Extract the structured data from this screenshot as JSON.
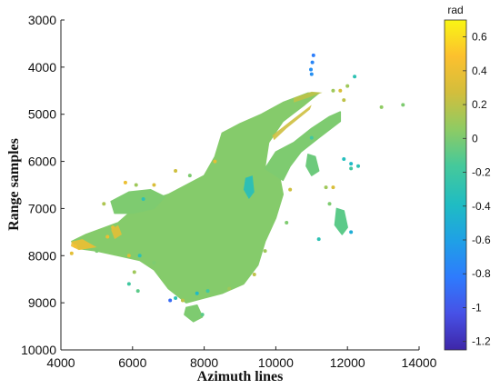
{
  "chart_data": {
    "type": "scatter",
    "title": "",
    "xlabel": "Azimuth lines",
    "ylabel": "Range samples",
    "xlim": [
      4000,
      14000
    ],
    "ylim": [
      3000,
      10000
    ],
    "y_inverted": true,
    "x_ticks": [
      4000,
      6000,
      8000,
      10000,
      12000,
      14000
    ],
    "y_ticks": [
      3000,
      4000,
      5000,
      6000,
      7000,
      8000,
      9000,
      10000
    ],
    "grid": false,
    "colorbar": {
      "label": "rad",
      "range": [
        -1.25,
        0.7
      ],
      "ticks": [
        0.6,
        0.4,
        0.2,
        0,
        -0.2,
        -0.4,
        -0.6,
        -0.8,
        -1,
        -1.2
      ],
      "tick_labels": [
        "0.6",
        "0.4",
        "0.2",
        "0",
        "-0.2",
        "-0.4",
        "-0.6",
        "-0.8",
        "-1",
        "-1.2"
      ],
      "colormap": "parula",
      "colors": [
        "#3e26a8",
        "#4751e6",
        "#2e7bfd",
        "#1fa0e6",
        "#1fbcc3",
        "#46c99a",
        "#8fcb63",
        "#d3be3c",
        "#fcc02e",
        "#f9f614"
      ]
    },
    "regions": [
      {
        "name": "main-body",
        "value": 0.02,
        "points": [
          [
            4700,
            7550
          ],
          [
            5600,
            7300
          ],
          [
            6200,
            6900
          ],
          [
            7000,
            6700
          ],
          [
            7500,
            6500
          ],
          [
            8000,
            6300
          ],
          [
            8300,
            5900
          ],
          [
            8500,
            5400
          ],
          [
            9000,
            5200
          ],
          [
            9600,
            5000
          ],
          [
            10200,
            4750
          ],
          [
            10900,
            4550
          ],
          [
            11200,
            4550
          ],
          [
            10800,
            4800
          ],
          [
            10200,
            5150
          ],
          [
            9800,
            5600
          ],
          [
            9700,
            6100
          ],
          [
            10100,
            6300
          ],
          [
            10200,
            6700
          ],
          [
            10000,
            7200
          ],
          [
            9700,
            7700
          ],
          [
            9500,
            8200
          ],
          [
            9100,
            8600
          ],
          [
            8500,
            8800
          ],
          [
            8000,
            8900
          ],
          [
            7500,
            9000
          ],
          [
            7000,
            8700
          ],
          [
            6600,
            8300
          ],
          [
            6200,
            8100
          ],
          [
            5600,
            8000
          ],
          [
            5000,
            7900
          ],
          [
            4500,
            7850
          ],
          [
            4300,
            7700
          ]
        ]
      },
      {
        "name": "ne-lobe",
        "value": 0.0,
        "points": [
          [
            9700,
            6150
          ],
          [
            10000,
            5800
          ],
          [
            10500,
            5600
          ],
          [
            11000,
            5300
          ],
          [
            11500,
            5050
          ],
          [
            11800,
            4950
          ],
          [
            11800,
            5150
          ],
          [
            11200,
            5500
          ],
          [
            10700,
            5800
          ],
          [
            10400,
            6100
          ],
          [
            10200,
            6400
          ]
        ]
      },
      {
        "name": "e-lobe",
        "value": -0.05,
        "points": [
          [
            10900,
            5850
          ],
          [
            11100,
            5900
          ],
          [
            11200,
            6200
          ],
          [
            11000,
            6300
          ],
          [
            10850,
            6100
          ]
        ]
      },
      {
        "name": "w-patch",
        "value": 0.0,
        "points": [
          [
            5400,
            6850
          ],
          [
            5900,
            6650
          ],
          [
            6500,
            6600
          ],
          [
            6900,
            6750
          ],
          [
            6600,
            7000
          ],
          [
            6000,
            7100
          ],
          [
            5500,
            7100
          ]
        ]
      },
      {
        "name": "se-lobe",
        "value": -0.1,
        "points": [
          [
            11700,
            7000
          ],
          [
            11900,
            7050
          ],
          [
            12000,
            7400
          ],
          [
            11850,
            7550
          ],
          [
            11650,
            7350
          ]
        ]
      },
      {
        "name": "s-lobe",
        "value": 0.0,
        "points": [
          [
            7500,
            9100
          ],
          [
            7800,
            9050
          ],
          [
            7950,
            9300
          ],
          [
            7700,
            9400
          ],
          [
            7450,
            9250
          ]
        ]
      }
    ],
    "features": [
      {
        "name": "ne-stripe",
        "value": 0.25,
        "points": [
          [
            9900,
            5450
          ],
          [
            10400,
            5150
          ],
          [
            11000,
            4800
          ],
          [
            10950,
            4900
          ],
          [
            10300,
            5300
          ],
          [
            9950,
            5550
          ]
        ]
      },
      {
        "name": "north-stripe",
        "value": 0.2,
        "points": [
          [
            10500,
            4650
          ],
          [
            11000,
            4520
          ],
          [
            11300,
            4540
          ],
          [
            10900,
            4650
          ],
          [
            10500,
            4750
          ]
        ]
      },
      {
        "name": "west-yellow-edge",
        "value": 0.4,
        "points": [
          [
            4300,
            7700
          ],
          [
            4600,
            7650
          ],
          [
            5000,
            7820
          ],
          [
            4500,
            7880
          ],
          [
            4280,
            7800
          ]
        ]
      },
      {
        "name": "sw-yellow",
        "value": 0.35,
        "points": [
          [
            5400,
            7450
          ],
          [
            5600,
            7350
          ],
          [
            5700,
            7550
          ],
          [
            5500,
            7650
          ]
        ]
      },
      {
        "name": "cyan-lake",
        "value": -0.35,
        "points": [
          [
            9150,
            6350
          ],
          [
            9350,
            6300
          ],
          [
            9400,
            6650
          ],
          [
            9250,
            6800
          ],
          [
            9100,
            6600
          ]
        ]
      }
    ],
    "points": [
      {
        "x": 11050,
        "y": 3750,
        "value": -0.8
      },
      {
        "x": 11020,
        "y": 3900,
        "value": -0.75
      },
      {
        "x": 10980,
        "y": 4050,
        "value": -0.7
      },
      {
        "x": 11000,
        "y": 4150,
        "value": -0.7
      },
      {
        "x": 12200,
        "y": 4200,
        "value": -0.3
      },
      {
        "x": 11800,
        "y": 4500,
        "value": 0.3
      },
      {
        "x": 12000,
        "y": 4400,
        "value": 0.1
      },
      {
        "x": 11900,
        "y": 4700,
        "value": 0.2
      },
      {
        "x": 13550,
        "y": 4800,
        "value": 0.0
      },
      {
        "x": 11600,
        "y": 4500,
        "value": 0.1
      },
      {
        "x": 12950,
        "y": 4850,
        "value": 0.05
      },
      {
        "x": 11200,
        "y": 5350,
        "value": 0.0
      },
      {
        "x": 11000,
        "y": 5500,
        "value": -0.2
      },
      {
        "x": 11900,
        "y": 5950,
        "value": -0.35
      },
      {
        "x": 12100,
        "y": 6050,
        "value": -0.4
      },
      {
        "x": 12300,
        "y": 6100,
        "value": -0.3
      },
      {
        "x": 12100,
        "y": 6150,
        "value": -0.2
      },
      {
        "x": 11600,
        "y": 6550,
        "value": 0.3
      },
      {
        "x": 11400,
        "y": 6550,
        "value": 0.1
      },
      {
        "x": 11500,
        "y": 6900,
        "value": 0.0
      },
      {
        "x": 12100,
        "y": 7500,
        "value": -0.5
      },
      {
        "x": 11200,
        "y": 7650,
        "value": -0.3
      },
      {
        "x": 5800,
        "y": 6450,
        "value": 0.4
      },
      {
        "x": 6600,
        "y": 6500,
        "value": 0.3
      },
      {
        "x": 6100,
        "y": 6500,
        "value": 0.1
      },
      {
        "x": 7200,
        "y": 6200,
        "value": 0.25
      },
      {
        "x": 7600,
        "y": 6300,
        "value": 0.0
      },
      {
        "x": 8300,
        "y": 6000,
        "value": 0.35
      },
      {
        "x": 5200,
        "y": 6900,
        "value": 0.15
      },
      {
        "x": 6300,
        "y": 6800,
        "value": -0.3
      },
      {
        "x": 4400,
        "y": 7800,
        "value": 0.45
      },
      {
        "x": 4300,
        "y": 7950,
        "value": 0.35
      },
      {
        "x": 5000,
        "y": 7900,
        "value": 0.0
      },
      {
        "x": 5300,
        "y": 7600,
        "value": 0.4
      },
      {
        "x": 5450,
        "y": 7400,
        "value": 0.35
      },
      {
        "x": 5900,
        "y": 8000,
        "value": 0.3
      },
      {
        "x": 6200,
        "y": 8000,
        "value": -0.3
      },
      {
        "x": 6600,
        "y": 8150,
        "value": 0.0
      },
      {
        "x": 5900,
        "y": 8600,
        "value": -0.2
      },
      {
        "x": 6150,
        "y": 8750,
        "value": -0.1
      },
      {
        "x": 6050,
        "y": 8350,
        "value": 0.1
      },
      {
        "x": 7200,
        "y": 8900,
        "value": -0.3
      },
      {
        "x": 7050,
        "y": 8950,
        "value": -0.9
      },
      {
        "x": 7400,
        "y": 8950,
        "value": 0.2
      },
      {
        "x": 7800,
        "y": 8800,
        "value": -0.4
      },
      {
        "x": 8100,
        "y": 8750,
        "value": -0.2
      },
      {
        "x": 7950,
        "y": 9250,
        "value": -0.1
      },
      {
        "x": 8700,
        "y": 8700,
        "value": 0.1
      },
      {
        "x": 9400,
        "y": 8400,
        "value": 0.2
      },
      {
        "x": 9700,
        "y": 7900,
        "value": 0.1
      },
      {
        "x": 10300,
        "y": 7300,
        "value": 0.0
      },
      {
        "x": 10400,
        "y": 6600,
        "value": 0.25
      }
    ]
  }
}
